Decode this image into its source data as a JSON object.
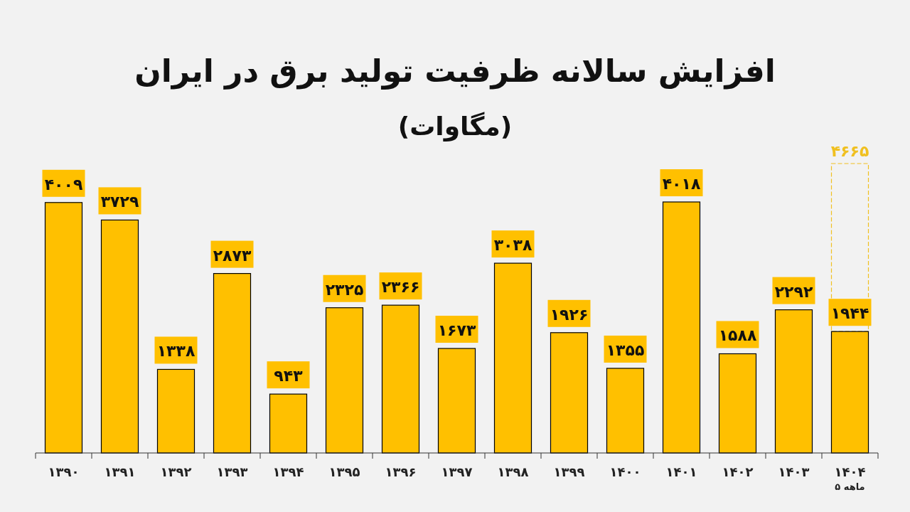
{
  "chart_data": {
    "type": "bar",
    "title": "افزایش سالانه ظرفیت تولید برق در ایران",
    "subtitle": "(مگاوات)",
    "categories": [
      "۱۳۹۰",
      "۱۳۹۱",
      "۱۳۹۲",
      "۱۳۹۳",
      "۱۳۹۴",
      "۱۳۹۵",
      "۱۳۹۶",
      "۱۳۹۷",
      "۱۳۹۸",
      "۱۳۹۹",
      "۱۴۰۰",
      "۱۴۰۱",
      "۱۴۰۲",
      "۱۴۰۳",
      "۱۴۰۴$_{۵ ماهه}$"
    ],
    "values": [
      4009,
      3729,
      1338,
      2873,
      943,
      2325,
      2366,
      1673,
      3038,
      1926,
      1355,
      4018,
      1588,
      2292,
      1944
    ],
    "value_labels": [
      "۴۰۰۹",
      "۳۷۲۹",
      "۱۳۳۸",
      "۲۸۷۳",
      "۹۴۳",
      "۲۳۲۵",
      "۲۳۶۶",
      "۱۶۷۳",
      "۳۰۳۸",
      "۱۹۲۶",
      "۱۳۵۵",
      "۴۰۱۸",
      "۱۵۸۸",
      "۲۲۹۲",
      "۱۹۴۴"
    ],
    "color": "#ffc000",
    "annotations": [
      "۴۶۶۵"
    ]
  }
}
